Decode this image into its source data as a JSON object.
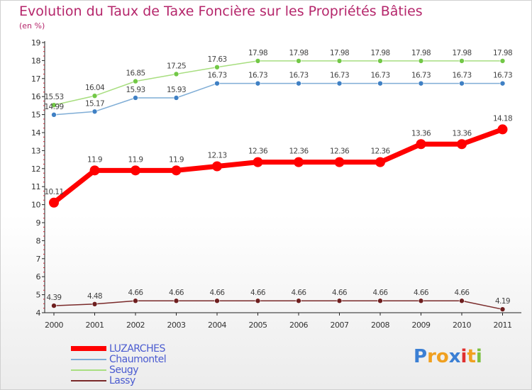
{
  "chart_data": {
    "type": "line",
    "title": "Evolution du Taux de Taxe Foncière sur les Propriétés Bâties",
    "subtitle": "(en %)",
    "categories": [
      "2000",
      "2001",
      "2002",
      "2003",
      "2004",
      "2005",
      "2006",
      "2007",
      "2008",
      "2009",
      "2010",
      "2011"
    ],
    "ylim": [
      4,
      19
    ],
    "yticks": [
      4,
      5,
      6,
      7,
      8,
      9,
      10,
      11,
      12,
      13,
      14,
      15,
      16,
      17,
      18,
      19
    ],
    "grid": false,
    "legend_position": "bottom-left",
    "series": [
      {
        "name": "LUZARCHES",
        "color": "#ff0000",
        "dot_color": "#ff0000",
        "line_width": 7,
        "marker_r": 7,
        "values": [
          10.11,
          11.9,
          11.9,
          11.9,
          12.13,
          12.36,
          12.36,
          12.36,
          12.36,
          13.36,
          13.36,
          14.18
        ],
        "labels": [
          "10.11",
          "11.9",
          "11.9",
          "11.9",
          "12.13",
          "12.36",
          "12.36",
          "12.36",
          "12.36",
          "13.36",
          "13.36",
          "14.18"
        ]
      },
      {
        "name": "Chaumontel",
        "color": "#7fadd6",
        "dot_color": "#3f80c4",
        "line_width": 1.5,
        "marker_r": 3.5,
        "values": [
          14.99,
          15.17,
          15.93,
          15.93,
          16.73,
          16.73,
          16.73,
          16.73,
          16.73,
          16.73,
          16.73,
          16.73
        ],
        "labels": [
          "14.99",
          "15.17",
          "15.93",
          "15.93",
          "16.73",
          "16.73",
          "16.73",
          "16.73",
          "16.73",
          "16.73",
          "16.73",
          "16.73"
        ]
      },
      {
        "name": "Seugy",
        "color": "#a8de80",
        "dot_color": "#72c846",
        "line_width": 1.5,
        "marker_r": 3.5,
        "values": [
          15.53,
          16.04,
          16.85,
          17.25,
          17.63,
          17.98,
          17.98,
          17.98,
          17.98,
          17.98,
          17.98,
          17.98
        ],
        "labels": [
          "15.53",
          "16.04",
          "16.85",
          "17.25",
          "17.63",
          "17.98",
          "17.98",
          "17.98",
          "17.98",
          "17.98",
          "17.98",
          "17.98"
        ]
      },
      {
        "name": "Lassy",
        "color": "#7a2a2a",
        "dot_color": "#6e1f1f",
        "line_width": 1.5,
        "marker_r": 3.5,
        "values": [
          4.39,
          4.48,
          4.66,
          4.66,
          4.66,
          4.66,
          4.66,
          4.66,
          4.66,
          4.66,
          4.66,
          4.19
        ],
        "labels": [
          "4.39",
          "4.48",
          "4.66",
          "4.66",
          "4.66",
          "4.66",
          "4.66",
          "4.66",
          "4.66",
          "4.66",
          "4.66",
          "4.19"
        ]
      }
    ]
  },
  "logo": {
    "letters": [
      "P",
      "r",
      "o",
      "x",
      "i",
      "t",
      "i"
    ],
    "colors": [
      "#3b7fd4",
      "#f0a020",
      "#f0a020",
      "#3b7fd4",
      "#e03030",
      "#f0a020",
      "#7cc040"
    ]
  }
}
